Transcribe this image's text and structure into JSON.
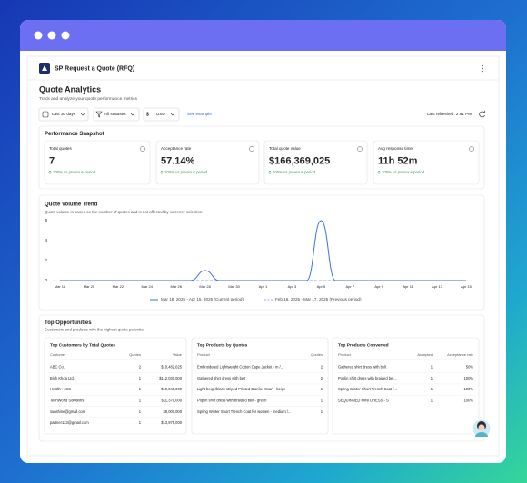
{
  "app": {
    "title": "SP Request a Quote (RFQ)"
  },
  "header": {
    "title": "Quote Analytics",
    "subtitle": "Track and analyze your quote performance metrics"
  },
  "filters": {
    "period": "Last 30 days",
    "status": "All statuses",
    "currency": "USD",
    "link": "See example",
    "refreshed": "Last refreshed: 2:51 PM"
  },
  "snapshot": {
    "title": "Performance Snapshot",
    "metrics": [
      {
        "label": "Total quotes",
        "value": "7",
        "change": "100% vs previous period"
      },
      {
        "label": "Acceptance rate",
        "value": "57.14%",
        "change": "100% vs previous period"
      },
      {
        "label": "Total quote value",
        "value": "$166,369,025",
        "change": "100% vs previous period"
      },
      {
        "label": "Avg response time",
        "value": "11h 52m",
        "change": "100% vs previous period"
      }
    ]
  },
  "chart_data": {
    "type": "line",
    "title": "Quote Volume Trend",
    "subtitle": "Quote volume is based on the number of quotes and is not affected by currency selection.",
    "categories": [
      "Mar 18",
      null,
      "Mar 20",
      null,
      "Mar 22",
      null,
      "Mar 24",
      null,
      "Mar 26",
      null,
      "Mar 28",
      null,
      "Mar 30",
      null,
      "Apr 1",
      null,
      "Apr 3",
      null,
      "Apr 5",
      null,
      "Apr 7",
      null,
      "Apr 9",
      null,
      "Apr 11",
      null,
      "Apr 13",
      null,
      "Apr 15"
    ],
    "series": [
      {
        "name": "Mar 18, 2025 - Apr 15, 2025 (Current period)",
        "color": "#3b6ee6",
        "dash": false,
        "values": [
          0,
          0,
          0,
          0,
          0,
          0,
          0,
          0,
          0,
          0,
          1,
          0,
          0,
          0,
          0,
          0,
          0,
          0,
          6,
          0,
          0,
          0,
          0,
          0,
          0,
          0,
          0,
          0,
          0
        ]
      },
      {
        "name": "Feb 16, 2025 - Mar 17, 2025 (Previous period)",
        "color": "#8fa9ee",
        "dash": true,
        "values": [
          0,
          0,
          0,
          0,
          0,
          0,
          0,
          0,
          0,
          0,
          0,
          0,
          0,
          0,
          0,
          0,
          0,
          0,
          0,
          0,
          0,
          0,
          0,
          0,
          0,
          0,
          0,
          0,
          0
        ]
      }
    ],
    "ylim": [
      0,
      6
    ],
    "yticks": [
      0,
      2,
      4,
      6
    ],
    "grid": false
  },
  "opportunities": {
    "title": "Top Opportunities",
    "subtitle": "Customers and products with the highest quote potential",
    "tables": [
      {
        "title": "Top Customers by Total Quotes",
        "columns": [
          "Customer",
          "Quotes",
          "Value"
        ],
        "rows": [
          [
            "ABC Co.",
            "2",
            "$10,482,025"
          ],
          [
            "Bích Khoa Ltd.",
            "1",
            "$112,030,000"
          ],
          [
            "Health+ JSC",
            "1",
            "$10,945,000"
          ],
          [
            "TechWorld Solutions",
            "1",
            "$11,370,000"
          ],
          [
            "sunshine@gmail.com",
            "1",
            "$8,000,000"
          ],
          [
            "partner123@gmail.com",
            "1",
            "$13,975,000"
          ]
        ]
      },
      {
        "title": "Top Products by Quotes",
        "columns": [
          "Product",
          "Quotes"
        ],
        "rows": [
          [
            "Embroidered Lightweight Cotton Cape Jacket - m /...",
            "2"
          ],
          [
            "Gathered shirt dress with belt",
            "2"
          ],
          [
            "Light beige/black striped Printed Blanket Scarf - beige",
            "1"
          ],
          [
            "Poplin shirt dress with braided belt - green",
            "1"
          ],
          [
            "Spring Winter Short Trench Coat for women - medium /...",
            "1"
          ]
        ]
      },
      {
        "title": "Top Products Converted",
        "columns": [
          "Product",
          "Accepted",
          "Acceptance rate"
        ],
        "rows": [
          [
            "Gathered shirt dress with belt",
            "1",
            "50%"
          ],
          [
            "Poplin shirt dress with braided bel...",
            "1",
            "100%"
          ],
          [
            "Spring Winter Short Trench Coat f...",
            "1",
            "100%"
          ],
          [
            "SEQUINNED MINI DRESS - S",
            "1",
            "100%"
          ]
        ]
      }
    ]
  }
}
